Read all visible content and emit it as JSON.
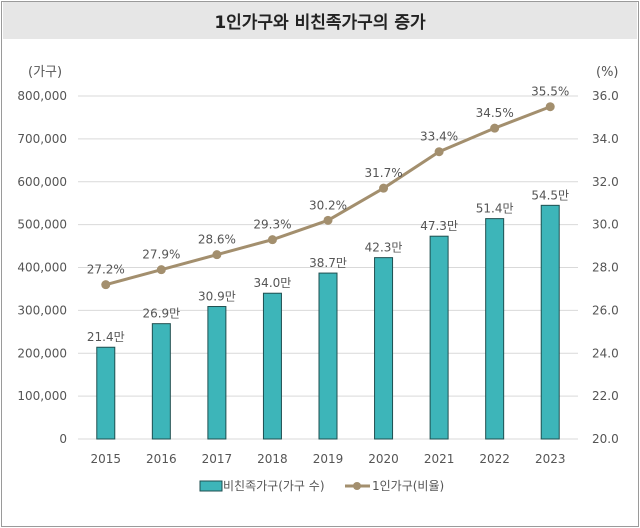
{
  "chart_data": {
    "type": "bar+line",
    "title": "1인가구와 비친족가구의 증가",
    "categories": [
      "2015",
      "2016",
      "2017",
      "2018",
      "2019",
      "2020",
      "2021",
      "2022",
      "2023"
    ],
    "left_axis": {
      "unit_label": "(가구)",
      "ylim": [
        0,
        800000
      ],
      "ticks": [
        "0",
        "100,000",
        "200,000",
        "300,000",
        "400,000",
        "500,000",
        "600,000",
        "700,000",
        "800,000"
      ]
    },
    "right_axis": {
      "unit_label": "(%)",
      "ylim": [
        20,
        36
      ],
      "ticks": [
        "20.0",
        "22.0",
        "24.0",
        "26.0",
        "28.0",
        "30.0",
        "32.0",
        "34.0",
        "36.0"
      ]
    },
    "series": [
      {
        "name": "비친족가구(가구 수)",
        "type": "bar",
        "axis": "left",
        "color": "#3db5b9",
        "values": [
          214000,
          269000,
          309000,
          340000,
          387000,
          423000,
          473000,
          514000,
          545000
        ],
        "labels": [
          "21.4만",
          "26.9만",
          "30.9만",
          "34.0만",
          "38.7만",
          "42.3만",
          "47.3만",
          "51.4만",
          "54.5만"
        ]
      },
      {
        "name": "1인가구(비율)",
        "type": "line",
        "axis": "right",
        "color": "#a38f6e",
        "values": [
          27.2,
          27.9,
          28.6,
          29.3,
          30.2,
          31.7,
          33.4,
          34.5,
          35.5
        ],
        "labels": [
          "27.2%",
          "27.9%",
          "28.6%",
          "29.3%",
          "30.2%",
          "31.7%",
          "33.4%",
          "34.5%",
          "35.5%"
        ]
      }
    ],
    "grid": true,
    "legend": "bottom"
  }
}
